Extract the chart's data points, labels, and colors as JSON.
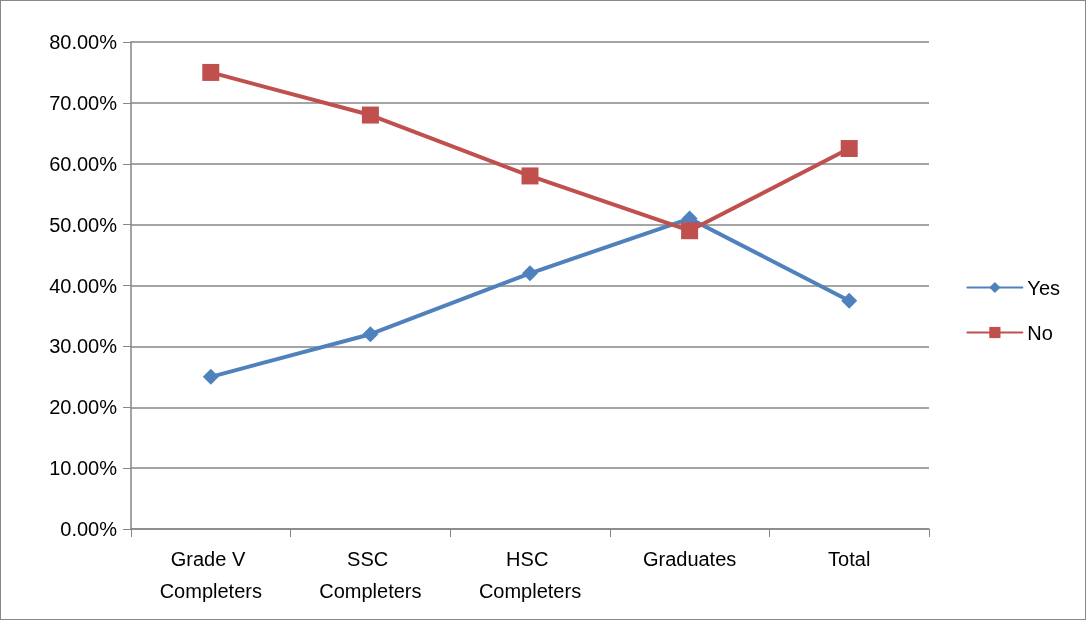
{
  "chart_data": {
    "type": "line",
    "categories": [
      "Grade V Completers",
      "SSC Completers",
      "HSC Completers",
      "Graduates",
      "Total"
    ],
    "series": [
      {
        "name": "Yes",
        "color": "#4f81bd",
        "marker": "diamond",
        "values": [
          25,
          32,
          42,
          51,
          37.5
        ]
      },
      {
        "name": "No",
        "color": "#c0504d",
        "marker": "square",
        "values": [
          75,
          68,
          58,
          49,
          62.5
        ]
      }
    ],
    "ylim": [
      0,
      80
    ],
    "yticks": [
      {
        "value": 0,
        "label": "0.00%"
      },
      {
        "value": 10,
        "label": "10.00%"
      },
      {
        "value": 20,
        "label": "20.00%"
      },
      {
        "value": 30,
        "label": "30.00%"
      },
      {
        "value": 40,
        "label": "40.00%"
      },
      {
        "value": 50,
        "label": "50.00%"
      },
      {
        "value": 60,
        "label": "60.00%"
      },
      {
        "value": 70,
        "label": "70.00%"
      },
      {
        "value": 80,
        "label": "80.00%"
      }
    ],
    "grid": "y",
    "legend": "right",
    "line_style": "solid"
  }
}
